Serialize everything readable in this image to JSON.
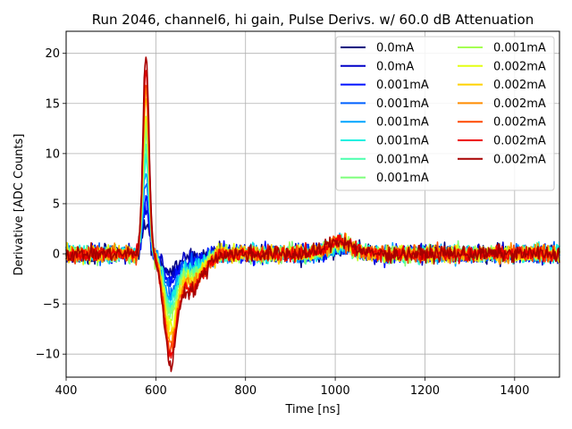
{
  "chart_data": {
    "type": "line",
    "title": "Run 2046, channel6, hi gain, Pulse Derivs. w/ 60.0 dB Attenuation",
    "xlabel": "Time [ns]",
    "ylabel": "Derivative [ADC Counts]",
    "xlim": [
      400,
      1500
    ],
    "ylim": [
      -12.3,
      22.2
    ],
    "xticks": [
      400,
      600,
      800,
      1000,
      1200,
      1400
    ],
    "yticks": [
      -10,
      -5,
      0,
      5,
      10,
      15,
      20
    ],
    "grid": true,
    "legend_position": "top-right",
    "legend_columns": 2,
    "series": [
      {
        "name": "0.0mA",
        "color": "#00007f",
        "peak": 3.0,
        "trough": -1.5
      },
      {
        "name": "0.0mA",
        "color": "#0000c8",
        "peak": 4.5,
        "trough": -2.2
      },
      {
        "name": "0.001mA",
        "color": "#0010ff",
        "peak": 5.5,
        "trough": -2.8
      },
      {
        "name": "0.001mA",
        "color": "#0060ff",
        "peak": 7.0,
        "trough": -3.5
      },
      {
        "name": "0.001mA",
        "color": "#00a4ff",
        "peak": 8.5,
        "trough": -4.0
      },
      {
        "name": "0.001mA",
        "color": "#16f0e0",
        "peak": 10.0,
        "trough": -4.8
      },
      {
        "name": "0.001mA",
        "color": "#4affad",
        "peak": 11.0,
        "trough": -5.3
      },
      {
        "name": "0.001mA",
        "color": "#7dff7a",
        "peak": 12.0,
        "trough": -5.8
      },
      {
        "name": "0.001mA",
        "color": "#a4ff53",
        "peak": 13.0,
        "trough": -6.3
      },
      {
        "name": "0.002mA",
        "color": "#e3ff13",
        "peak": 14.0,
        "trough": -7.0
      },
      {
        "name": "0.002mA",
        "color": "#ffd200",
        "peak": 15.5,
        "trough": -7.8
      },
      {
        "name": "0.002mA",
        "color": "#ff8c00",
        "peak": 16.5,
        "trough": -8.5
      },
      {
        "name": "0.002mA",
        "color": "#ff4800",
        "peak": 17.5,
        "trough": -9.2
      },
      {
        "name": "0.002mA",
        "color": "#ee0000",
        "peak": 18.5,
        "trough": -9.8
      },
      {
        "name": "0.002mA",
        "color": "#a80000",
        "peak": 19.8,
        "trough": -10.4
      }
    ]
  }
}
